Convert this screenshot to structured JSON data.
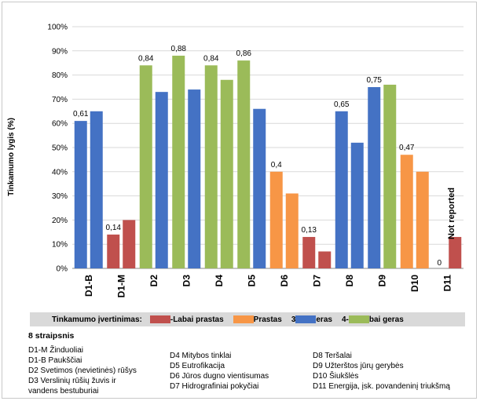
{
  "chart_data": {
    "type": "bar",
    "ylabel": "Tinkamumo lygis (%)",
    "ylim": [
      0,
      100
    ],
    "y_ticks": [
      "0%",
      "10%",
      "20%",
      "30%",
      "40%",
      "50%",
      "60%",
      "70%",
      "80%",
      "90%",
      "100%"
    ],
    "categories": [
      "D1-B",
      "D1-M",
      "D2",
      "D3",
      "D4",
      "D5",
      "D6",
      "D7",
      "D8",
      "D9",
      "D10",
      "D11"
    ],
    "bars": [
      {
        "category": "D1-B",
        "values": [
          61,
          65
        ],
        "color": "#4472C4",
        "label": "0,61"
      },
      {
        "category": "D1-M",
        "values": [
          14,
          20
        ],
        "color": "#C0504D",
        "label": "0,14"
      },
      {
        "category": "D2",
        "values": [
          84,
          73
        ],
        "colors": [
          "#9BBB59",
          "#4472C4"
        ],
        "label": "0,84"
      },
      {
        "category": "D3",
        "values": [
          88,
          74
        ],
        "colors": [
          "#9BBB59",
          "#4472C4"
        ],
        "label": "0,88"
      },
      {
        "category": "D4",
        "values": [
          84,
          78
        ],
        "color": "#9BBB59",
        "label": "0,84"
      },
      {
        "category": "D5",
        "values": [
          86,
          66
        ],
        "colors": [
          "#9BBB59",
          "#4472C4"
        ],
        "label": "0,86"
      },
      {
        "category": "D6",
        "values": [
          40,
          31
        ],
        "color": "#F79646",
        "label": "0,4"
      },
      {
        "category": "D7",
        "values": [
          13,
          7
        ],
        "color": "#C0504D",
        "label": "0,13"
      },
      {
        "category": "D8",
        "values": [
          65,
          52
        ],
        "color": "#4472C4",
        "label": "0,65"
      },
      {
        "category": "D9",
        "values": [
          75,
          76
        ],
        "colors": [
          "#4472C4",
          "#9BBB59"
        ],
        "label": "0,75"
      },
      {
        "category": "D10",
        "values": [
          47,
          40
        ],
        "color": "#F79646",
        "label": "0,47"
      },
      {
        "category": "D11",
        "values": [
          0,
          13
        ],
        "color": "#C0504D",
        "label": "0"
      }
    ],
    "annotation": "Not reported",
    "legend": {
      "title": "Tinkamumo įvertinimas:",
      "items": [
        {
          "label": "-Labai prastas",
          "color": "#C0504D"
        },
        {
          "label": "Prastas",
          "color": "#F79646"
        },
        {
          "prefix": "3",
          "label": "eras",
          "color": "#4472C4"
        },
        {
          "prefix": "4-",
          "label": "bai geras",
          "color": "#9BBB59"
        }
      ]
    }
  },
  "notes": {
    "title": "8 straipsnis",
    "col1": [
      "D1-M Žinduoliai",
      "D1-B Paukščiai",
      "D2 Svetimos (nevietinės) rūšys",
      "D3 Verslinių rūšių žuvis ir",
      "vandens bestuburiai"
    ],
    "col2": [
      "D4 Mitybos tinklai",
      "D5 Eutrofikacija",
      "D6 Jūros dugno vientisumas",
      "D7 Hidrografiniai pokyčiai"
    ],
    "col3": [
      "D8 Teršalai",
      "D9 Užterštos jūrų gerybės",
      "D10 Šiukšlės",
      "D11 Energija, įsk. povandeninį triukšmą"
    ]
  }
}
